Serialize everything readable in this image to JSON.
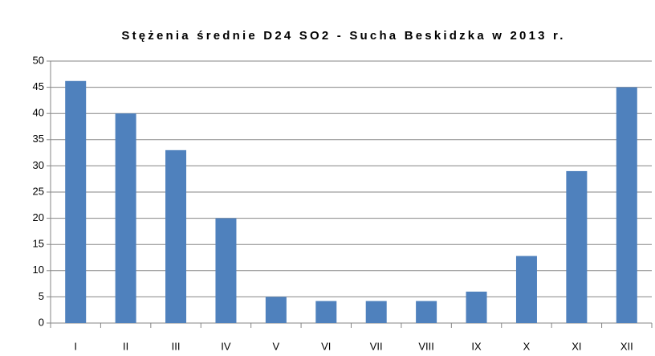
{
  "chart_data": {
    "type": "bar",
    "title": "Stężenia średnie D24 SO2 - Sucha Beskidzka w 2013 r.",
    "categories": [
      "I",
      "II",
      "III",
      "IV",
      "V",
      "VI",
      "VII",
      "VIII",
      "IX",
      "X",
      "XI",
      "XII"
    ],
    "values": [
      46.2,
      40,
      33,
      20,
      5,
      4.2,
      4.2,
      4.2,
      6,
      12.8,
      29,
      45
    ],
    "color": "#4f81bd",
    "ylim": [
      0,
      50
    ],
    "yticks": [
      0,
      5,
      10,
      15,
      20,
      25,
      30,
      35,
      40,
      45,
      50
    ],
    "grid": true
  }
}
